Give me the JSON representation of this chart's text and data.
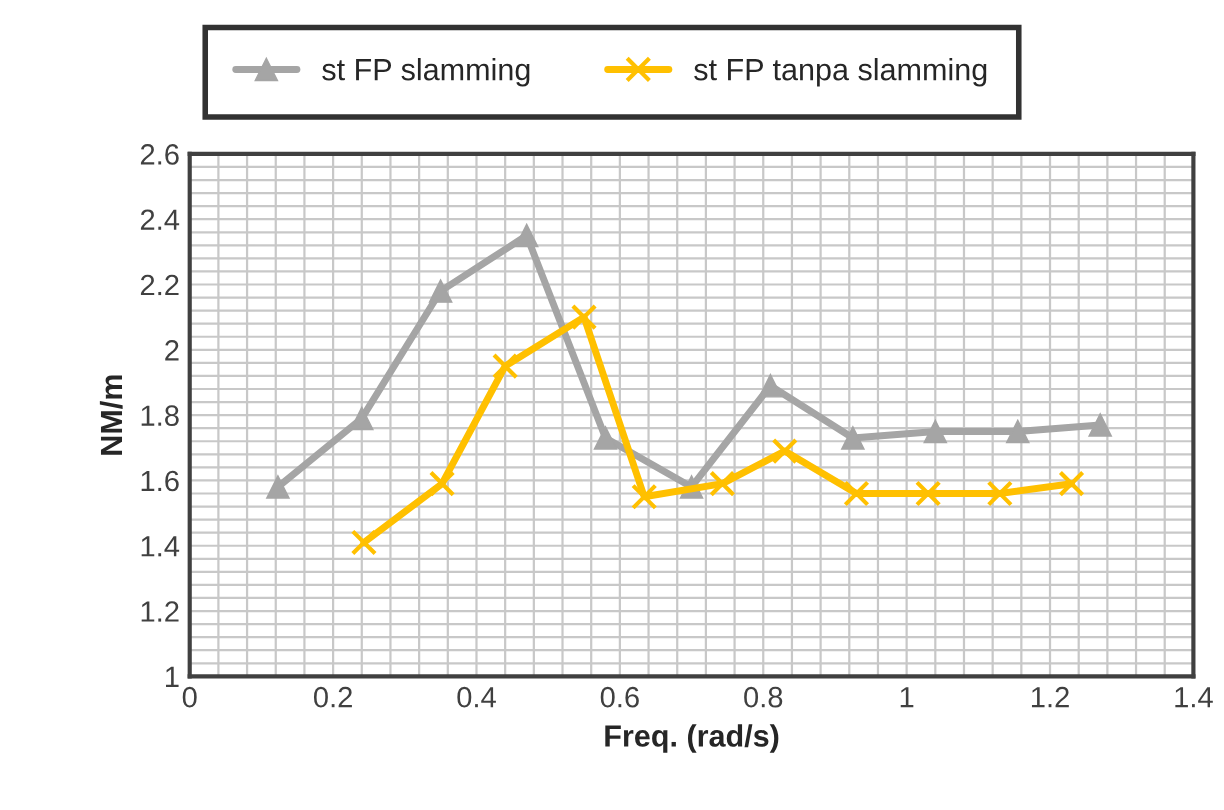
{
  "chart_data": {
    "type": "line",
    "xlabel": "Freq. (rad/s)",
    "ylabel": "NM/m",
    "xlim": [
      0,
      1.4
    ],
    "xticks": [
      0,
      0.2,
      0.4,
      0.6,
      0.8,
      1,
      1.2,
      1.4
    ],
    "ylim": [
      1,
      2.6
    ],
    "yticks": [
      1,
      1.2,
      1.4,
      1.6,
      1.8,
      2,
      2.2,
      2.4,
      2.6
    ],
    "grid": true,
    "legend": "top",
    "line_style": "solid",
    "series": [
      {
        "name": "st FP slamming",
        "color": "#a5a5a5",
        "marker": "triangle",
        "x": [
          0.123,
          0.24,
          0.35,
          0.47,
          0.58,
          0.7,
          0.81,
          0.925,
          1.04,
          1.155,
          1.27
        ],
        "values": [
          1.58,
          1.79,
          2.18,
          2.35,
          1.73,
          1.58,
          1.89,
          1.73,
          1.75,
          1.75,
          1.77
        ]
      },
      {
        "name": "st FP tanpa slamming",
        "color": "#ffc000",
        "marker": "cross",
        "x": [
          0.243,
          0.352,
          0.44,
          0.55,
          0.634,
          0.743,
          0.83,
          0.93,
          1.03,
          1.13,
          1.23
        ],
        "values": [
          1.41,
          1.59,
          1.95,
          2.1,
          1.55,
          1.59,
          1.69,
          1.56,
          1.56,
          1.56,
          1.59
        ]
      }
    ]
  }
}
